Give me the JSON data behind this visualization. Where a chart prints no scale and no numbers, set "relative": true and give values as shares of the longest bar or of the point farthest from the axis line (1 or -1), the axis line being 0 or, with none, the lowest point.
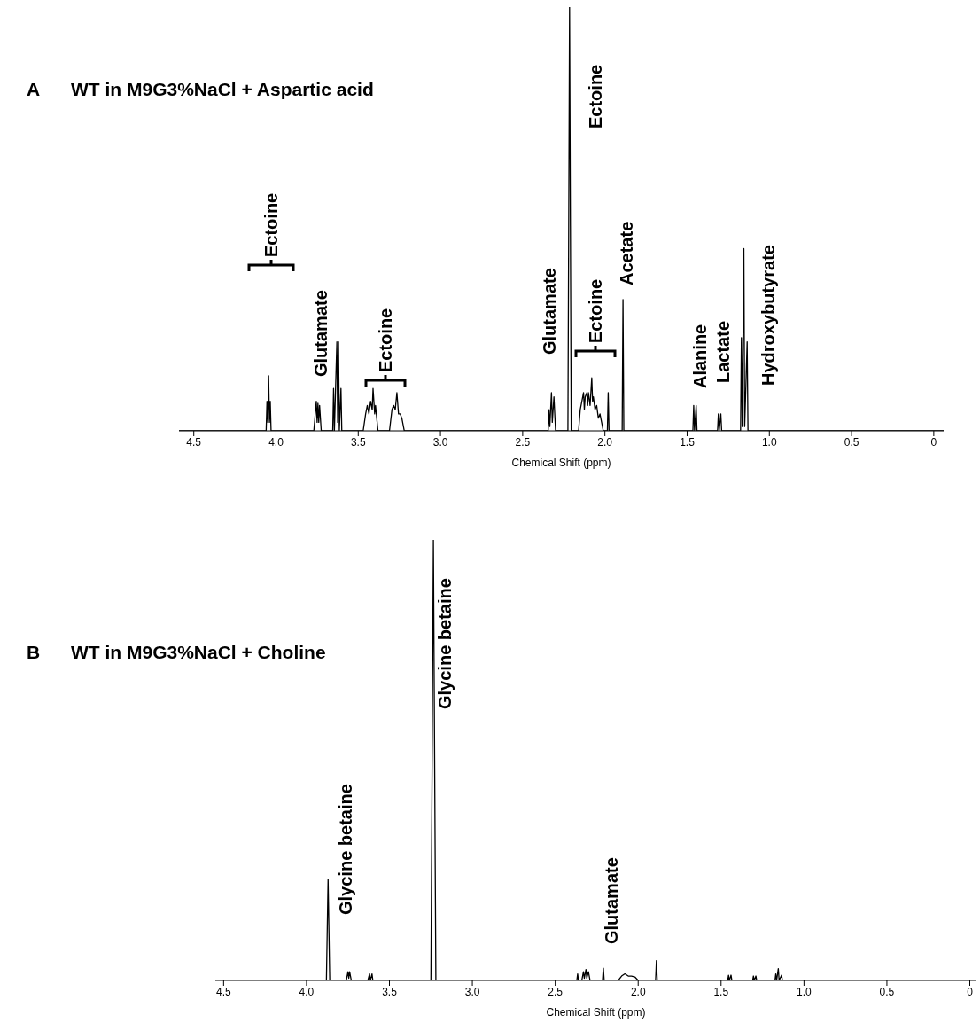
{
  "chart_data": [
    {
      "type": "line",
      "title": "WT in M9G3%NaCl + Aspartic acid",
      "xlabel": "Chemical Shift (ppm)",
      "relative": true,
      "xlim": [
        4.59,
        -0.06
      ],
      "xticks": [
        {
          "value": 4.5,
          "label": "4.5"
        },
        {
          "value": 4,
          "label": "4.0"
        },
        {
          "value": 3.5,
          "label": "3.5"
        },
        {
          "value": 3,
          "label": "3.0"
        },
        {
          "value": 2.5,
          "label": "2.5"
        },
        {
          "value": 2,
          "label": "2.0"
        },
        {
          "value": 1.5,
          "label": "1.5"
        },
        {
          "value": 1,
          "label": "1.0"
        },
        {
          "value": 0.5,
          "label": "0.5"
        },
        0
      ],
      "annotations": [
        "A",
        "Ectoine",
        "Glutamate",
        "Ectoine",
        "Glutamate",
        "Ectoine",
        "Ectoine",
        "Acetate",
        "Alanine",
        "Lactate",
        "Hydroxybutyrate"
      ],
      "series": [
        {
          "color": "#000000",
          "x": [
            4.59,
            4.06,
            4.055,
            4.05,
            4.045,
            4.04,
            4.035,
            4.03,
            3.77,
            3.755,
            3.75,
            3.745,
            3.74,
            3.735,
            3.725,
            3.655,
            3.65,
            3.645,
            3.63,
            3.625,
            3.62,
            3.615,
            3.605,
            3.6,
            3.47,
            3.455,
            3.445,
            3.435,
            3.425,
            3.415,
            3.41,
            3.4,
            3.395,
            3.38,
            3.31,
            3.295,
            3.285,
            3.275,
            3.265,
            3.255,
            3.245,
            3.235,
            3.22,
            2.345,
            2.34,
            2.335,
            2.325,
            2.32,
            2.31,
            2.3,
            2.225,
            2.215,
            2.205,
            2.16,
            2.15,
            2.14,
            2.13,
            2.125,
            2.12,
            2.11,
            2.105,
            2.1,
            2.09,
            2.08,
            2.075,
            2.07,
            2.06,
            2.05,
            2.04,
            2.03,
            2.02,
            2.01,
            1.985,
            1.98,
            1.975,
            1.895,
            1.89,
            1.885,
            1.465,
            1.46,
            1.455,
            1.445,
            1.44,
            1.315,
            1.31,
            1.305,
            1.295,
            1.29,
            1.175,
            1.17,
            1.165,
            1.155,
            1.15,
            1.135,
            1.13,
            -0.06
          ],
          "values": [
            0,
            0,
            0.07,
            0.02,
            0.13,
            0.02,
            0.07,
            0,
            0,
            0.07,
            0.02,
            0.065,
            0.02,
            0.06,
            0,
            0,
            0.1,
            0,
            0.21,
            0.02,
            0.21,
            0,
            0.1,
            0,
            0,
            0.04,
            0.06,
            0.04,
            0.07,
            0.05,
            0.1,
            0.04,
            0.06,
            0,
            0,
            0.05,
            0.06,
            0.05,
            0.09,
            0.04,
            0.04,
            0.03,
            0,
            0,
            0.05,
            0.01,
            0.09,
            0.02,
            0.08,
            0,
            0,
            1,
            0,
            0,
            0.05,
            0.07,
            0.09,
            0.05,
            0.08,
            0.09,
            0.06,
            0.09,
            0.06,
            0.125,
            0.07,
            0.08,
            0.05,
            0.06,
            0.03,
            0.04,
            0.02,
            0,
            0,
            0.09,
            0,
            0,
            0.31,
            0,
            0,
            0.06,
            0,
            0.06,
            0,
            0,
            0.04,
            0,
            0.04,
            0,
            0,
            0.22,
            0.01,
            0.43,
            0.01,
            0.21,
            0,
            0
          ]
        }
      ]
    },
    {
      "type": "line",
      "title": "WT in M9G3%NaCl + Choline",
      "xlabel": "Chemical Shift (ppm)",
      "relative": true,
      "xlim": [
        4.55,
        -0.04
      ],
      "xticks": [
        {
          "value": 4.5,
          "label": "4.5"
        },
        {
          "value": 4,
          "label": "4.0"
        },
        {
          "value": 3.5,
          "label": "3.5"
        },
        {
          "value": 3,
          "label": "3.0"
        },
        {
          "value": 2.5,
          "label": "2.5"
        },
        {
          "value": 2,
          "label": "2.0"
        },
        {
          "value": 1.5,
          "label": "1.5"
        },
        {
          "value": 1,
          "label": "1.0"
        },
        {
          "value": 0.5,
          "label": "0.5"
        },
        0
      ],
      "annotations": [
        "B",
        "Glycine betaine",
        "Glycine betaine",
        "Glutamate"
      ],
      "series": [
        {
          "color": "#000000",
          "x": [
            4.55,
            3.88,
            3.87,
            3.86,
            3.76,
            3.75,
            3.745,
            3.74,
            3.73,
            3.63,
            3.62,
            3.615,
            3.605,
            3.6,
            3.25,
            3.235,
            3.22,
            2.37,
            2.365,
            2.36,
            2.34,
            2.33,
            2.325,
            2.315,
            2.31,
            2.3,
            2.29,
            2.215,
            2.21,
            2.205,
            2.12,
            2.1,
            2.08,
            2.06,
            2.04,
            2.02,
            2.0,
            1.895,
            1.89,
            1.885,
            1.46,
            1.455,
            1.45,
            1.44,
            1.435,
            1.31,
            1.305,
            1.3,
            1.29,
            1.285,
            1.175,
            1.17,
            1.165,
            1.155,
            1.15,
            1.135,
            1.13,
            -0.04
          ],
          "values": [
            0,
            0,
            0.23,
            0,
            0,
            0.02,
            0.005,
            0.02,
            0,
            0,
            0.015,
            0,
            0.015,
            0,
            0,
            1,
            0,
            0,
            0.015,
            0,
            0,
            0.02,
            0.005,
            0.025,
            0.005,
            0.02,
            0,
            0,
            0.028,
            0,
            0,
            0.01,
            0.015,
            0.01,
            0.01,
            0.008,
            0,
            0,
            0.045,
            0,
            0,
            0.012,
            0,
            0.012,
            0,
            0,
            0.01,
            0,
            0.01,
            0,
            0,
            0.015,
            0,
            0.027,
            0,
            0.012,
            0,
            0
          ]
        }
      ]
    }
  ]
}
